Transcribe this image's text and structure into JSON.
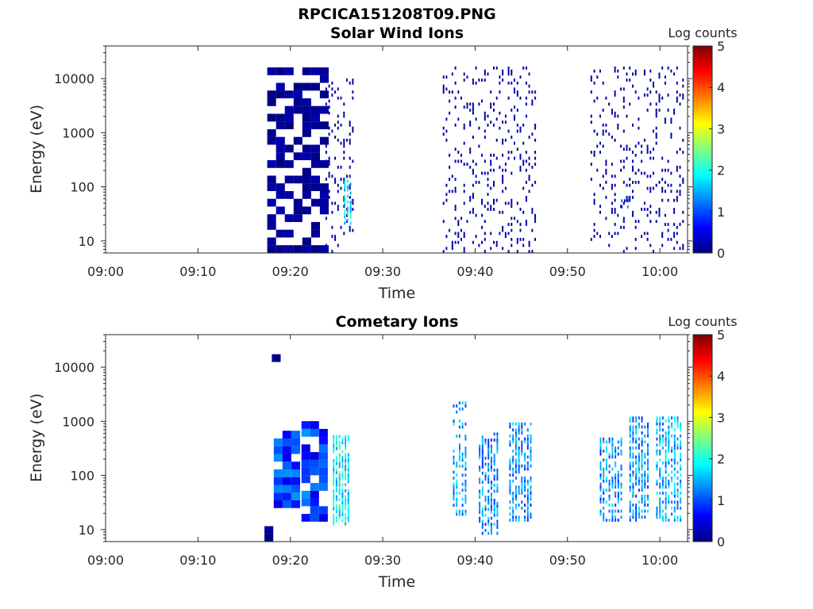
{
  "figure_title": "RPCICA151208T09.PNG",
  "colors": {
    "colormap": [
      "#00007f",
      "#0000ff",
      "#007fff",
      "#00ffff",
      "#7fff7f",
      "#ffff00",
      "#ff7f00",
      "#ff0000",
      "#7f0000"
    ],
    "axis": "#262626"
  },
  "chart_data": [
    {
      "type": "heatmap",
      "title": "Solar Wind Ions",
      "xlabel": "Time",
      "ylabel": "Energy (eV)",
      "x_ticks": [
        "09:00",
        "09:10",
        "09:20",
        "09:30",
        "09:40",
        "09:50",
        "10:00"
      ],
      "y_ticks": [
        "10",
        "100",
        "1000",
        "10000"
      ],
      "y_scale": "log",
      "xlim": [
        "09:00",
        "10:03"
      ],
      "ylim": [
        6,
        40000
      ],
      "colorbar": {
        "label": "Log counts",
        "range": [
          0,
          5
        ],
        "ticks": [
          "0",
          "1",
          "2",
          "3",
          "4",
          "5"
        ]
      },
      "clusters": [
        {
          "t0": 17.5,
          "t1": 23.5,
          "e0": 6,
          "e1": 14000,
          "density": 0.55,
          "level": 0.1,
          "coarse": true
        },
        {
          "t0": 23.8,
          "t1": 27.0,
          "e0": 6,
          "e1": 9000,
          "density": 0.2,
          "level": 0.2,
          "coarse": false
        },
        {
          "t0": 25.8,
          "t1": 26.6,
          "e0": 20,
          "e1": 120,
          "density": 0.5,
          "level": 1.8,
          "coarse": false
        },
        {
          "t0": 36.5,
          "t1": 46.5,
          "e0": 6,
          "e1": 15000,
          "density": 0.16,
          "level": 0.2,
          "coarse": false
        },
        {
          "t0": 52.5,
          "t1": 62.5,
          "e0": 6,
          "e1": 15000,
          "density": 0.16,
          "level": 0.2,
          "coarse": false
        },
        {
          "t0": 55.8,
          "t1": 56.6,
          "e0": 40,
          "e1": 60,
          "density": 0.8,
          "level": 1.0,
          "coarse": false
        }
      ]
    },
    {
      "type": "heatmap",
      "title": "Cometary Ions",
      "xlabel": "Time",
      "ylabel": "Energy (eV)",
      "x_ticks": [
        "09:00",
        "09:10",
        "09:20",
        "09:30",
        "09:40",
        "09:50",
        "10:00"
      ],
      "y_ticks": [
        "10",
        "100",
        "1000",
        "10000"
      ],
      "y_scale": "log",
      "xlim": [
        "09:00",
        "10:03"
      ],
      "ylim": [
        6,
        40000
      ],
      "colorbar": {
        "label": "Log counts",
        "range": [
          0,
          5
        ],
        "ticks": [
          "0",
          "1",
          "2",
          "3",
          "4",
          "5"
        ]
      },
      "clusters": [
        {
          "t0": 17.2,
          "t1": 17.9,
          "e0": 6,
          "e1": 11,
          "density": 1.0,
          "level": 0.1,
          "coarse": true
        },
        {
          "t0": 18.0,
          "t1": 19.6,
          "e0": 9000,
          "e1": 14000,
          "density": 0.6,
          "level": 0.1,
          "coarse": true
        },
        {
          "t0": 18.2,
          "t1": 20.7,
          "e0": 25,
          "e1": 600,
          "density": 0.85,
          "level": 0.9,
          "coarse": true
        },
        {
          "t0": 21.2,
          "t1": 23.6,
          "e0": 14,
          "e1": 800,
          "density": 0.8,
          "level": 0.9,
          "coarse": true
        },
        {
          "t0": 24.6,
          "t1": 26.5,
          "e0": 12,
          "e1": 500,
          "density": 0.75,
          "level": 1.8,
          "coarse": false
        },
        {
          "t0": 37.6,
          "t1": 39.0,
          "e0": 18,
          "e1": 2200,
          "density": 0.45,
          "level": 1.4,
          "coarse": false
        },
        {
          "t0": 40.4,
          "t1": 42.6,
          "e0": 8,
          "e1": 600,
          "density": 0.6,
          "level": 1.3,
          "coarse": false
        },
        {
          "t0": 43.7,
          "t1": 46.1,
          "e0": 14,
          "e1": 900,
          "density": 0.6,
          "level": 1.3,
          "coarse": false
        },
        {
          "t0": 53.5,
          "t1": 55.9,
          "e0": 14,
          "e1": 500,
          "density": 0.6,
          "level": 1.3,
          "coarse": false
        },
        {
          "t0": 56.7,
          "t1": 58.7,
          "e0": 14,
          "e1": 1200,
          "density": 0.6,
          "level": 1.3,
          "coarse": false
        },
        {
          "t0": 59.6,
          "t1": 62.2,
          "e0": 14,
          "e1": 1200,
          "density": 0.65,
          "level": 1.5,
          "coarse": false
        }
      ]
    }
  ]
}
